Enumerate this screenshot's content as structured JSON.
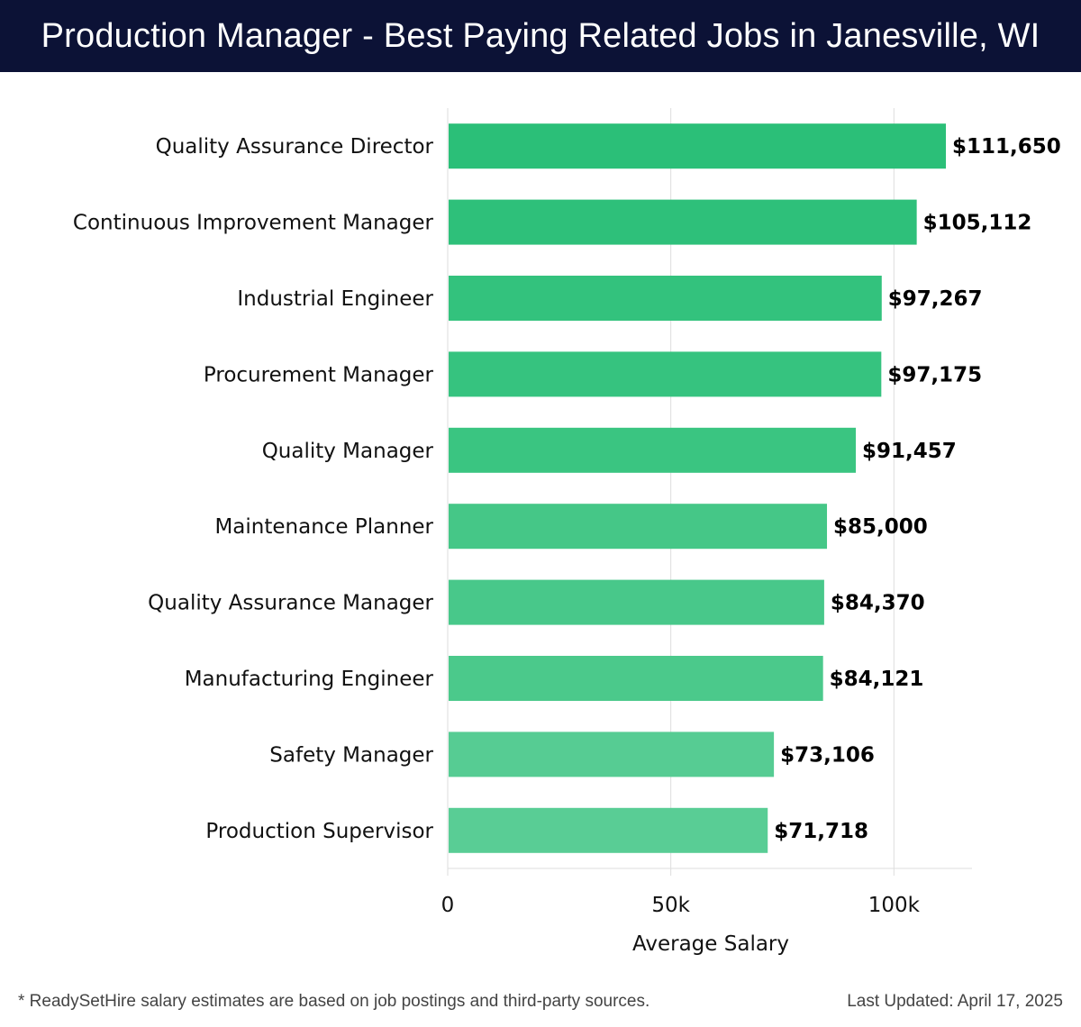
{
  "header": {
    "title": "Production Manager - Best Paying Related Jobs in Janesville, WI"
  },
  "chart_data": {
    "type": "bar",
    "orientation": "horizontal",
    "categories": [
      "Quality Assurance Director",
      "Continuous Improvement Manager",
      "Industrial Engineer",
      "Procurement Manager",
      "Quality Manager",
      "Maintenance Planner",
      "Quality Assurance Manager",
      "Manufacturing Engineer",
      "Safety Manager",
      "Production Supervisor"
    ],
    "values": [
      111650,
      105112,
      97267,
      97175,
      91457,
      85000,
      84370,
      84121,
      73106,
      71718
    ],
    "value_labels": [
      "$111,650",
      "$105,112",
      "$97,267",
      "$97,175",
      "$91,457",
      "$85,000",
      "$84,370",
      "$84,121",
      "$73,106",
      "$71,718"
    ],
    "xlabel": "Average Salary",
    "xlim": [
      0,
      117500
    ],
    "x_ticks": [
      {
        "value": 0,
        "label": "0"
      },
      {
        "value": 50000,
        "label": "50k"
      },
      {
        "value": 100000,
        "label": "100k"
      }
    ],
    "grid": true,
    "bar_colors": [
      "#2bbf78",
      "#2ec07a",
      "#33c27d",
      "#36c37f",
      "#3ac581",
      "#45c787",
      "#48c88a",
      "#4bc98b",
      "#56cc93",
      "#59cd95"
    ]
  },
  "footer": {
    "note": "* ReadySetHire salary estimates are based on job postings and third-party sources.",
    "updated": "Last Updated: April 17, 2025"
  }
}
